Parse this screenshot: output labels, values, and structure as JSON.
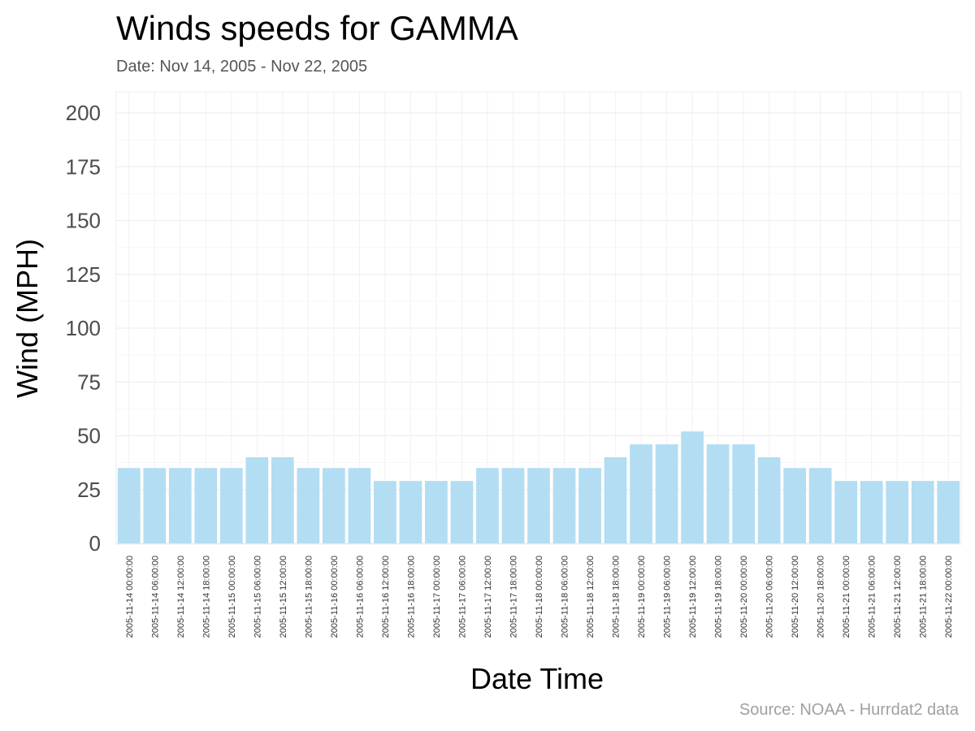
{
  "chart_data": {
    "type": "bar",
    "title": "Winds speeds for GAMMA",
    "subtitle": "Date:  Nov 14, 2005 - Nov 22, 2005",
    "xlabel": "Date Time",
    "ylabel": "Wind (MPH)",
    "caption": "Source: NOAA - Hurrdat2 data",
    "ylim": [
      0,
      200
    ],
    "yticks": [
      0,
      25,
      50,
      75,
      100,
      125,
      150,
      175,
      200
    ],
    "grid": true,
    "legend": "none",
    "bar_color": "#b3ddf2",
    "categories": [
      "2005-11-14 00:00:00",
      "2005-11-14 06:00:00",
      "2005-11-14 12:00:00",
      "2005-11-14 18:00:00",
      "2005-11-15 00:00:00",
      "2005-11-15 06:00:00",
      "2005-11-15 12:00:00",
      "2005-11-15 18:00:00",
      "2005-11-16 00:00:00",
      "2005-11-16 06:00:00",
      "2005-11-16 12:00:00",
      "2005-11-16 18:00:00",
      "2005-11-17 00:00:00",
      "2005-11-17 06:00:00",
      "2005-11-17 12:00:00",
      "2005-11-17 18:00:00",
      "2005-11-18 00:00:00",
      "2005-11-18 06:00:00",
      "2005-11-18 12:00:00",
      "2005-11-18 18:00:00",
      "2005-11-19 00:00:00",
      "2005-11-19 06:00:00",
      "2005-11-19 12:00:00",
      "2005-11-19 18:00:00",
      "2005-11-20 00:00:00",
      "2005-11-20 06:00:00",
      "2005-11-20 12:00:00",
      "2005-11-20 18:00:00",
      "2005-11-21 00:00:00",
      "2005-11-21 06:00:00",
      "2005-11-21 12:00:00",
      "2005-11-21 18:00:00",
      "2005-11-22 00:00:00"
    ],
    "values": [
      35,
      35,
      35,
      35,
      35,
      40,
      40,
      35,
      35,
      35,
      29,
      29,
      29,
      29,
      35,
      35,
      35,
      35,
      35,
      40,
      46,
      46,
      52,
      46,
      46,
      40,
      35,
      35,
      29,
      29,
      29,
      29,
      29
    ]
  }
}
